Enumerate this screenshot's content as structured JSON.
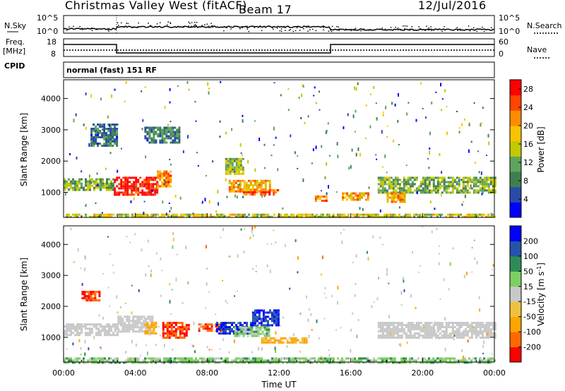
{
  "header": {
    "title": "Christmas Valley West (fitACF)",
    "beam": "Beam 17",
    "date": "12/Jul/2016"
  },
  "top_panels": {
    "nsky_label": "N.Sky",
    "nsky_ticks": [
      "10^5",
      "10^0"
    ],
    "nsearch_label": "N.Search",
    "nsearch_ticks": [
      "10^5",
      "10^0"
    ],
    "freq_label_1": "Freq.",
    "freq_label_2": "[MHz]",
    "freq_ticks": [
      "18",
      "8"
    ],
    "nave_label": "Nave",
    "nave_ticks": [
      "60",
      "0"
    ],
    "cpid_label": "CPID",
    "cpid_text": "normal (fast) 151 RF"
  },
  "colors": {
    "power": [
      "#0000ff",
      "#2a4aa8",
      "#3f7f4f",
      "#5ea45e",
      "#c3c800",
      "#f7c400",
      "#ff8c00",
      "#ff4500",
      "#ff0000"
    ],
    "velocity": [
      "#ff0000",
      "#ff6a00",
      "#ffa500",
      "#f0c040",
      "#c8c8c8",
      "#7cd060",
      "#2e8b57",
      "#2255aa",
      "#0000ff"
    ],
    "gray": "#c8c8c8"
  },
  "chart_data": [
    {
      "type": "heatmap",
      "quantity": "power",
      "ylabel": "Slant Range [km]",
      "ylim": [
        200,
        4600
      ],
      "yticks": [
        "1000",
        "2000",
        "3000",
        "4000"
      ],
      "x_ticks": [
        "00:00",
        "04:00",
        "08:00",
        "12:00",
        "16:00",
        "20:00",
        "00:00"
      ],
      "xlim_hours": [
        0,
        24
      ],
      "colorbar_label": "Power [dB]",
      "colorbar_ticks": [
        "4",
        "8",
        "12",
        "16",
        "20",
        "24",
        "28"
      ],
      "colorbar_range": [
        0,
        30
      ],
      "regions": [
        {
          "t": [
            0.0,
            2.8
          ],
          "r": [
            1050,
            1450
          ],
          "v": 12
        },
        {
          "t": [
            2.8,
            5.2
          ],
          "r": [
            950,
            1500
          ],
          "v": 28
        },
        {
          "t": [
            5.2,
            6.0
          ],
          "r": [
            1200,
            1700
          ],
          "v": 22
        },
        {
          "t": [
            9.2,
            11.5
          ],
          "r": [
            1000,
            1400
          ],
          "v": 20
        },
        {
          "t": [
            10.0,
            12.0
          ],
          "r": [
            900,
            1100
          ],
          "v": 24
        },
        {
          "t": [
            14.0,
            14.6
          ],
          "r": [
            700,
            900
          ],
          "v": 22
        },
        {
          "t": [
            15.5,
            17.0
          ],
          "r": [
            750,
            1000
          ],
          "v": 20
        },
        {
          "t": [
            17.5,
            24.0
          ],
          "r": [
            1000,
            1500
          ],
          "v": 12
        },
        {
          "t": [
            18.0,
            19.0
          ],
          "r": [
            700,
            1000
          ],
          "v": 20
        },
        {
          "t": [
            1.5,
            3.0
          ],
          "r": [
            2500,
            3200
          ],
          "v": 8
        },
        {
          "t": [
            4.5,
            6.5
          ],
          "r": [
            2600,
            3100
          ],
          "v": 8
        },
        {
          "t": [
            9.0,
            10.0
          ],
          "r": [
            1600,
            2100
          ],
          "v": 14
        },
        {
          "t": [
            0.0,
            24.0
          ],
          "r": [
            200,
            320
          ],
          "v": 16
        }
      ]
    },
    {
      "type": "heatmap",
      "quantity": "velocity",
      "ylabel": "Slant Range [km]",
      "ylim": [
        200,
        4600
      ],
      "yticks": [
        "1000",
        "2000",
        "3000",
        "4000"
      ],
      "x_ticks": [
        "00:00",
        "04:00",
        "08:00",
        "12:00",
        "16:00",
        "20:00",
        "00:00"
      ],
      "xlim_hours": [
        0,
        24
      ],
      "xlabel": "Time UT",
      "colorbar_label": "Velocity [m s^-1]",
      "colorbar_ticks": [
        "-200",
        "-100",
        "-50",
        "-15",
        "15",
        "50",
        "100",
        "200"
      ],
      "regions": [
        {
          "t": [
            0.0,
            3.0
          ],
          "r": [
            1050,
            1450
          ],
          "v": 0
        },
        {
          "t": [
            1.0,
            2.0
          ],
          "r": [
            2200,
            2500
          ],
          "v": -200
        },
        {
          "t": [
            3.0,
            5.0
          ],
          "r": [
            1200,
            1700
          ],
          "v": 0
        },
        {
          "t": [
            4.5,
            5.2
          ],
          "r": [
            1100,
            1500
          ],
          "v": -60
        },
        {
          "t": [
            5.5,
            7.0
          ],
          "r": [
            1000,
            1500
          ],
          "v": -200
        },
        {
          "t": [
            7.5,
            9.0
          ],
          "r": [
            1200,
            1450
          ],
          "v": -200
        },
        {
          "t": [
            8.5,
            10.5
          ],
          "r": [
            1100,
            1500
          ],
          "v": 200
        },
        {
          "t": [
            9.5,
            11.5
          ],
          "r": [
            1050,
            1350
          ],
          "v": 30
        },
        {
          "t": [
            10.5,
            12.0
          ],
          "r": [
            1400,
            1900
          ],
          "v": 200
        },
        {
          "t": [
            11.0,
            13.5
          ],
          "r": [
            850,
            1000
          ],
          "v": -60
        },
        {
          "t": [
            17.5,
            24.0
          ],
          "r": [
            1000,
            1500
          ],
          "v": 0
        },
        {
          "t": [
            0.0,
            24.0
          ],
          "r": [
            200,
            350
          ],
          "v": 30
        }
      ]
    }
  ]
}
